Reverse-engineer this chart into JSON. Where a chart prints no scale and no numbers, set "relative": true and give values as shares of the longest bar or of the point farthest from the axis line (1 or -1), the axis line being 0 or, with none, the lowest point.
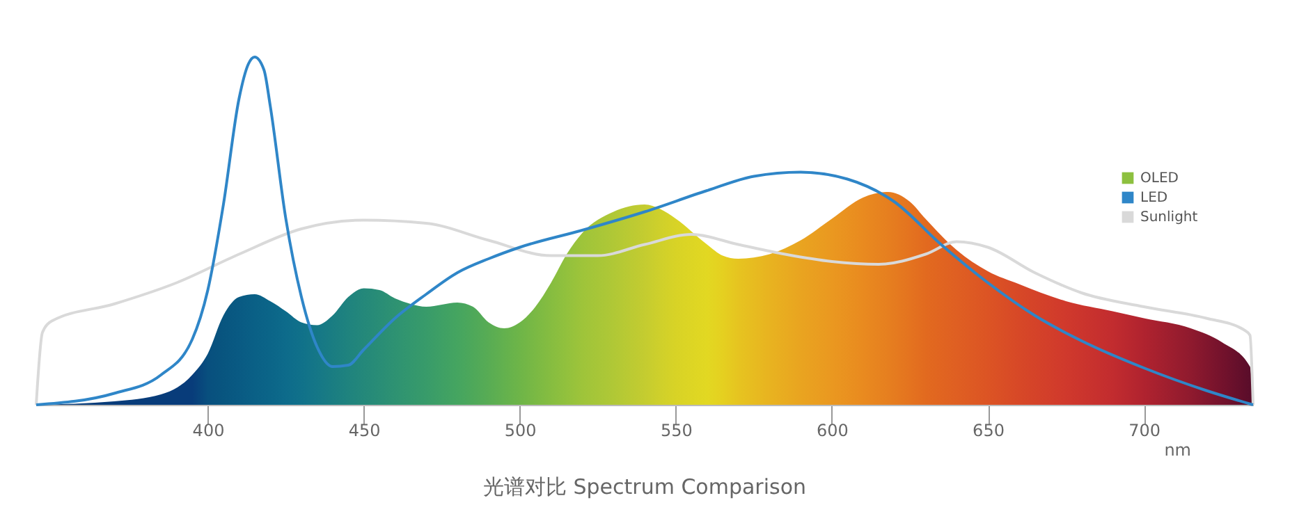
{
  "chart_data": {
    "type": "area",
    "title": "光谱对比 Spectrum Comparison",
    "xlabel": "nm",
    "relative": true,
    "xlim": [
      345,
      735
    ],
    "xticks": [
      400,
      450,
      500,
      550,
      600,
      650,
      700
    ],
    "legend": "right",
    "grid": false,
    "marker": "none",
    "line_style": "solid",
    "series": [
      {
        "name": "OLED",
        "color": "#8dc03f",
        "colors": [
          "#083c7a",
          "#083c7a",
          "#083c7a",
          "#083c7a",
          "#084f7e",
          "#08557f",
          "#095a83",
          "#0a6086",
          "#0b6588",
          "#0d6b8b",
          "#10718a",
          "#157787",
          "#1a7d82",
          "#1f837e",
          "#24887a",
          "#298d76",
          "#2e9272",
          "#33976e",
          "#389b6a",
          "#45a560",
          "#4ea85a",
          "#58ac54",
          "#63b14e",
          "#6eb548",
          "#7ab944",
          "#86bd40",
          "#92c13d",
          "#9ec43a",
          "#b0c836",
          "#c4cc30",
          "#cfd02b",
          "#d8d326",
          "#e2d822",
          "#e5d020",
          "#e6c420",
          "#e8b320",
          "#e9a420",
          "#ea9820",
          "#e98a1f",
          "#e67f1f",
          "#e4731f",
          "#e26a1f",
          "#df5f22",
          "#dc5424",
          "#d74827",
          "#d0392c",
          "#c22c2f",
          "#b0232f",
          "#8f1a2e",
          "#74122c",
          "#5a0d2a",
          "#5a0d2a"
        ],
        "x": [
          345,
          370,
          385,
          395,
          400,
          405,
          410,
          415,
          420,
          425,
          430,
          435,
          440,
          445,
          450,
          455,
          460,
          465,
          470,
          480,
          485,
          490,
          495,
          500,
          505,
          510,
          515,
          520,
          530,
          540,
          545,
          550,
          560,
          565,
          570,
          580,
          590,
          600,
          610,
          618,
          625,
          630,
          640,
          650,
          660,
          675,
          690,
          700,
          715,
          725,
          734,
          735
        ],
        "values": [
          0,
          0.01,
          0.03,
          0.086,
          0.147,
          0.257,
          0.31,
          0.318,
          0.298,
          0.269,
          0.237,
          0.229,
          0.257,
          0.31,
          0.335,
          0.33,
          0.306,
          0.29,
          0.282,
          0.294,
          0.282,
          0.237,
          0.22,
          0.237,
          0.282,
          0.351,
          0.433,
          0.494,
          0.555,
          0.576,
          0.563,
          0.535,
          0.461,
          0.429,
          0.42,
          0.433,
          0.473,
          0.535,
          0.596,
          0.612,
          0.584,
          0.535,
          0.445,
          0.384,
          0.347,
          0.298,
          0.269,
          0.249,
          0.22,
          0.18,
          0.11,
          0
        ]
      },
      {
        "name": "LED",
        "type": "line",
        "color": "#2f86c8",
        "x": [
          345,
          370,
          385,
          395,
          400,
          405,
          410,
          413,
          415,
          418,
          420,
          425,
          430,
          435,
          440,
          445,
          450,
          460,
          470,
          480,
          490,
          500,
          520,
          540,
          560,
          575,
          590,
          605,
          620,
          635,
          650,
          665,
          680,
          700,
          720,
          735
        ],
        "values": [
          0,
          0.033,
          0.086,
          0.188,
          0.33,
          0.576,
          0.88,
          0.98,
          1,
          0.963,
          0.86,
          0.535,
          0.31,
          0.167,
          0.11,
          0.114,
          0.159,
          0.249,
          0.318,
          0.38,
          0.42,
          0.453,
          0.502,
          0.555,
          0.616,
          0.657,
          0.669,
          0.649,
          0.584,
          0.461,
          0.351,
          0.257,
          0.184,
          0.106,
          0.041,
          0
        ]
      },
      {
        "name": "Sunlight",
        "type": "line",
        "color": "#d9d9d9",
        "x": [
          345,
          347,
          350,
          370,
          390,
          410,
          430,
          450,
          470,
          490,
          510,
          525,
          540,
          555,
          570,
          585,
          600,
          615,
          630,
          640,
          650,
          665,
          680,
          700,
          720,
          732,
          734,
          735
        ],
        "values": [
          0,
          0.208,
          0.241,
          0.29,
          0.351,
          0.433,
          0.506,
          0.531,
          0.522,
          0.473,
          0.429,
          0.429,
          0.461,
          0.49,
          0.461,
          0.433,
          0.412,
          0.404,
          0.433,
          0.469,
          0.453,
          0.38,
          0.322,
          0.282,
          0.249,
          0.216,
          0.2,
          0
        ]
      }
    ]
  }
}
